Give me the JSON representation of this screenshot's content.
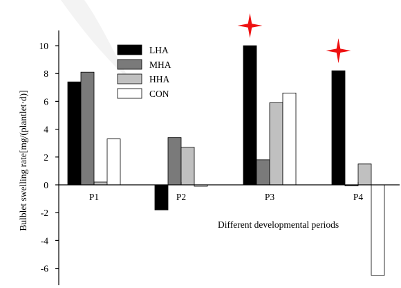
{
  "chart_data": {
    "type": "bar",
    "categories": [
      "P1",
      "P2",
      "P3",
      "P4"
    ],
    "series": [
      {
        "name": "LHA",
        "values": [
          7.4,
          -1.8,
          10.0,
          8.2
        ],
        "color": "#000000"
      },
      {
        "name": "MHA",
        "values": [
          8.1,
          3.4,
          1.8,
          0
        ],
        "color": "#7a7a7a"
      },
      {
        "name": "HHA",
        "values": [
          0.2,
          2.7,
          5.9,
          1.5
        ],
        "color": "#c0c0c0"
      },
      {
        "name": "CON",
        "values": [
          3.3,
          -0.1,
          6.6,
          -6.5
        ],
        "color": "#ffffff"
      }
    ],
    "xlabel": "Different developmental periods",
    "ylabel": "Bulblet swelling rate[mg/(plantlet·d)]",
    "ylim": [
      -7,
      11
    ],
    "yticks": [
      -6,
      -4,
      -2,
      0,
      2,
      4,
      6,
      8,
      10
    ],
    "legend_position": "top-left",
    "annotations": [
      {
        "type": "star-icon",
        "category": "P3",
        "series": "LHA",
        "color": "#ee1111"
      },
      {
        "type": "star-icon",
        "category": "P4",
        "series": "LHA",
        "color": "#ee1111"
      }
    ]
  }
}
